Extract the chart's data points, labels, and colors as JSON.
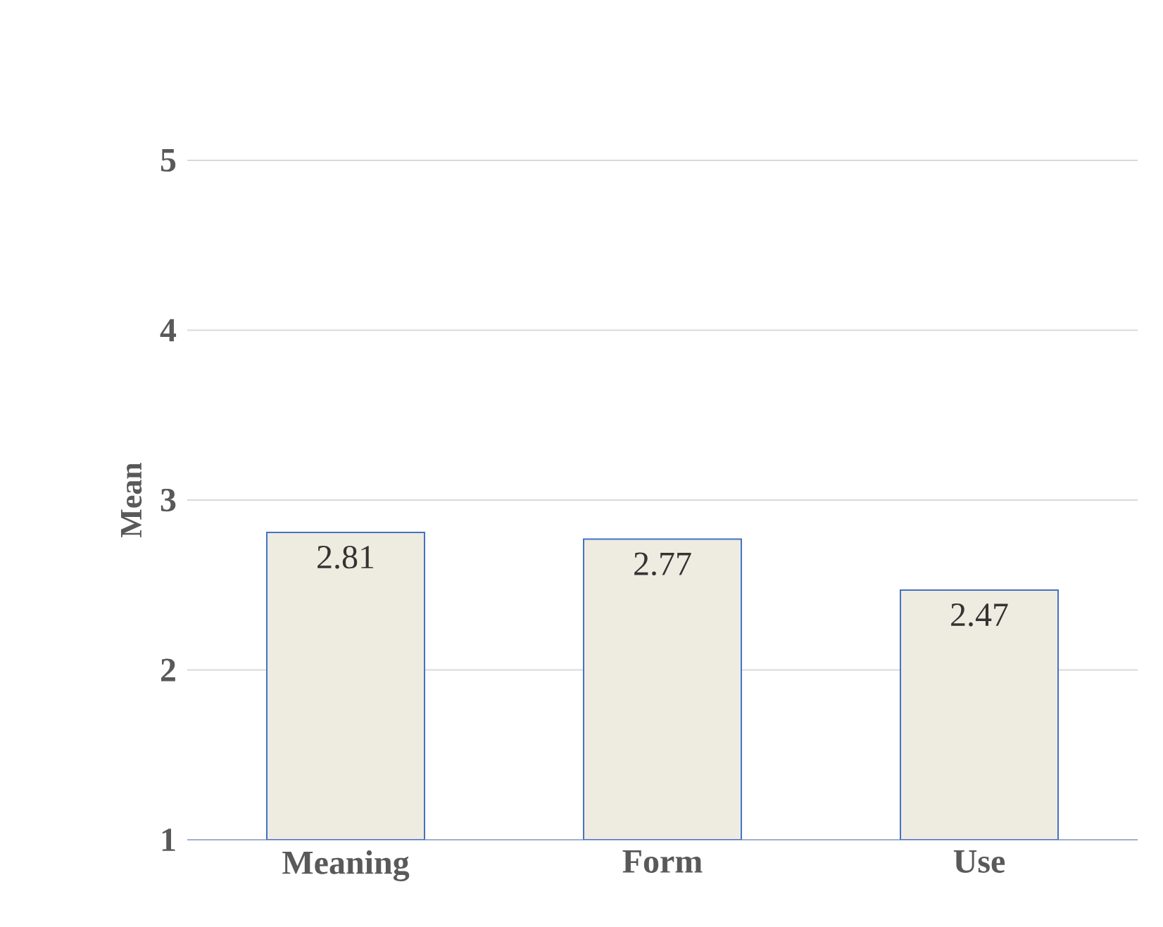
{
  "chart_data": {
    "type": "bar",
    "ylabel": "Mean",
    "categories": [
      "Meaning",
      "Form",
      "Use"
    ],
    "values": [
      2.81,
      2.77,
      2.47
    ],
    "color": "#eeebe0",
    "ylim": [
      1,
      5
    ],
    "yticks": [
      1,
      2,
      3,
      4,
      5
    ],
    "grid": "y",
    "data_labels": true
  }
}
